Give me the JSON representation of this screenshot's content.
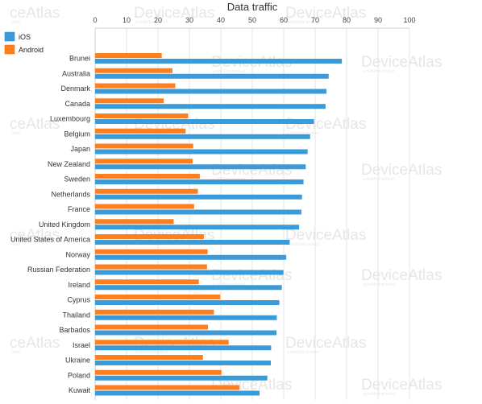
{
  "chart_data": {
    "type": "bar",
    "orientation": "horizontal",
    "title": "Data traffic",
    "xlabel": "",
    "ylabel": "",
    "xlim": [
      0,
      100
    ],
    "x_ticks": [
      0,
      10,
      20,
      30,
      40,
      50,
      60,
      70,
      80,
      90,
      100
    ],
    "axis_position": "top",
    "grid": true,
    "legend_position": "top-left",
    "categories": [
      "Brunei",
      "Australia",
      "Denmark",
      "Canada",
      "Luxembourg",
      "Belgium",
      "Japan",
      "New Zealand",
      "Sweden",
      "Netherlands",
      "France",
      "United Kingdom",
      "United States of America",
      "Norway",
      "Russian Federation",
      "Ireland",
      "Cyprus",
      "Thailand",
      "Barbados",
      "Israel",
      "Ukraine",
      "Poland",
      "Kuwait"
    ],
    "series": [
      {
        "name": "iOS",
        "color": "#3b9ad8",
        "values": [
          78.5,
          74.3,
          73.6,
          73.3,
          69.6,
          68.4,
          67.6,
          67.0,
          66.3,
          65.8,
          65.6,
          64.9,
          61.9,
          60.8,
          59.9,
          59.4,
          58.6,
          57.8,
          57.7,
          56.0,
          55.9,
          54.8,
          52.3
        ]
      },
      {
        "name": "Android",
        "color": "#ff7f1e",
        "values": [
          21.2,
          24.6,
          25.5,
          21.8,
          29.6,
          28.8,
          31.2,
          31.0,
          33.3,
          32.7,
          31.5,
          25.0,
          34.6,
          35.8,
          35.6,
          33.0,
          39.8,
          37.8,
          35.9,
          42.5,
          34.3,
          40.2,
          45.9
        ]
      }
    ]
  },
  "watermark": {
    "brand": "DeviceAtlas",
    "brand_partial": "ceAtlas",
    "tagline": "a dotMobi product",
    "tagline_partial": "mobi"
  }
}
